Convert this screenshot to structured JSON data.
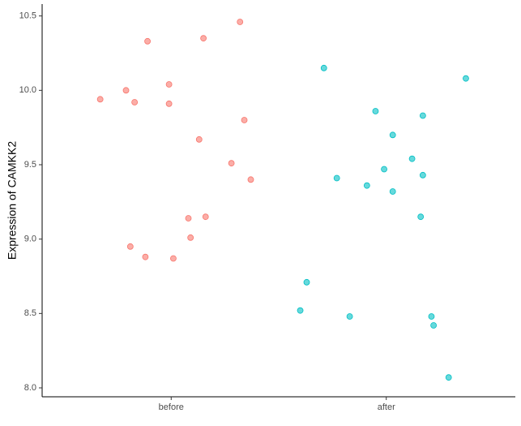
{
  "chart_data": {
    "type": "scatter",
    "ylabel": "Expression of  CAMKK2",
    "xlim": [
      0.4,
      2.6
    ],
    "xticks": [
      {
        "value": 1,
        "label": "before"
      },
      {
        "value": 2,
        "label": "after"
      }
    ],
    "ylim": [
      7.94,
      10.58
    ],
    "yticks": [
      {
        "value": 8,
        "label": "8.0"
      },
      8.5,
      {
        "value": 9,
        "label": "9.0"
      },
      9.5,
      {
        "value": 10,
        "label": "10.0"
      },
      10.5
    ],
    "series": [
      {
        "color": "#F8766D",
        "x": [
          0.67,
          0.79,
          0.83,
          0.89,
          0.99,
          0.99,
          1.15,
          1.32,
          1.13,
          1.34,
          1.28,
          1.37,
          1.08,
          1.16,
          1.09,
          0.81,
          0.88,
          1.01
        ],
        "values": [
          9.94,
          10.0,
          9.92,
          10.33,
          10.04,
          9.91,
          10.35,
          10.46,
          9.67,
          9.8,
          9.51,
          9.4,
          9.14,
          9.15,
          9.01,
          8.95,
          8.88,
          8.87
        ]
      },
      {
        "color": "#00BFC4",
        "x": [
          1.71,
          2.37,
          1.95,
          2.17,
          2.03,
          2.12,
          1.99,
          2.17,
          1.77,
          1.91,
          2.03,
          2.16,
          1.63,
          1.6,
          1.83,
          2.21,
          2.22,
          2.29
        ],
        "values": [
          10.15,
          10.08,
          9.86,
          9.83,
          9.7,
          9.54,
          9.47,
          9.43,
          9.41,
          9.36,
          9.32,
          9.15,
          8.71,
          8.52,
          8.48,
          8.48,
          8.42,
          8.07
        ]
      }
    ]
  }
}
